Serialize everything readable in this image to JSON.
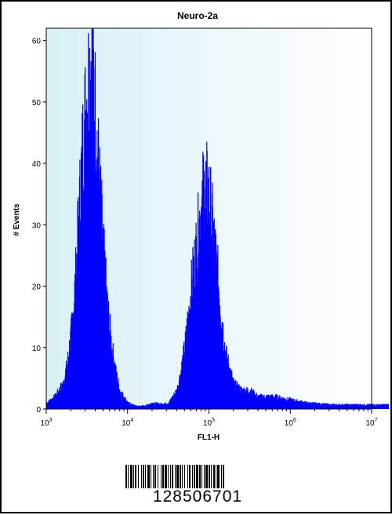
{
  "chart_data": {
    "type": "histogram",
    "title": "Neuro-2a",
    "xlabel": "FL1-H",
    "ylabel": "# Events",
    "x_scale": "log",
    "xlim": [
      1000,
      10000000
    ],
    "ylim": [
      0,
      62
    ],
    "y_ticks": [
      0,
      10,
      20,
      30,
      40,
      50,
      60
    ],
    "x_ticks": [
      {
        "base": "10",
        "exp": "3"
      },
      {
        "base": "10",
        "exp": "4"
      },
      {
        "base": "10",
        "exp": "5"
      },
      {
        "base": "10",
        "exp": "6"
      },
      {
        "base": "10",
        "exp": "7"
      }
    ],
    "grid": false,
    "legend": "none",
    "fill_color": "#0000ff",
    "background_gradient": [
      "#d8f0f6",
      "#ffffff"
    ],
    "series": [
      {
        "values_log10x": [
          3.0,
          3.1,
          3.2,
          3.25,
          3.3,
          3.35,
          3.4,
          3.45,
          3.5,
          3.55,
          3.6,
          3.65,
          3.7,
          3.75,
          3.8,
          3.85,
          3.9,
          3.95,
          4.0,
          4.1,
          4.2,
          4.3,
          4.4,
          4.5,
          4.55,
          4.6,
          4.65,
          4.7,
          4.75,
          4.8,
          4.85,
          4.9,
          4.95,
          5.0,
          5.05,
          5.1,
          5.15,
          5.2,
          5.3,
          5.4,
          5.5,
          5.6,
          5.8,
          6.0,
          6.2,
          6.5,
          7.0,
          7.2
        ],
        "events": [
          1,
          2,
          4,
          7,
          12,
          20,
          32,
          44,
          52,
          58,
          48,
          36,
          25,
          16,
          10,
          6,
          3,
          2,
          1,
          0.5,
          0.5,
          1,
          0.8,
          1,
          2,
          3,
          6,
          10,
          16,
          22,
          27,
          33,
          36,
          34,
          28,
          22,
          15,
          9,
          4,
          3,
          3,
          2,
          2,
          1.5,
          1,
          0.7,
          0.7,
          0.7
        ]
      }
    ]
  },
  "barcode": {
    "number": "128506701"
  }
}
